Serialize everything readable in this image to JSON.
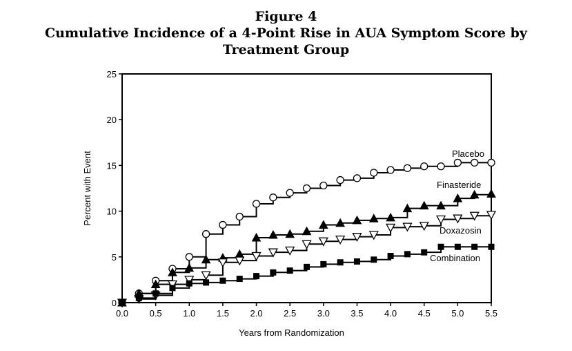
{
  "chart_data": {
    "type": "line",
    "step": true,
    "figure_label": "Figure 4",
    "title": "Cumulative Incidence of a 4-Point Rise in AUA Symptom Score by Treatment Group",
    "xlabel": "Years from Randomization",
    "ylabel": "Percent with Event",
    "xlim": [
      0,
      5.5
    ],
    "ylim": [
      0,
      25
    ],
    "xticks": [
      "0.0",
      "0.5",
      "1.0",
      "1.5",
      "2.0",
      "2.5",
      "3.0",
      "3.5",
      "4.0",
      "4.5",
      "5.0",
      "5.5"
    ],
    "yticks": [
      "0",
      "5",
      "10",
      "15",
      "20",
      "25"
    ],
    "grid": false,
    "legend": "none",
    "series": [
      {
        "name": "Placebo",
        "marker": "open-circle",
        "points": [
          [
            0,
            0
          ],
          [
            0.25,
            1.0
          ],
          [
            0.5,
            2.4
          ],
          [
            0.75,
            3.7
          ],
          [
            1.0,
            5.0
          ],
          [
            1.25,
            7.5
          ],
          [
            1.5,
            8.5
          ],
          [
            1.75,
            9.4
          ],
          [
            2.0,
            10.8
          ],
          [
            2.25,
            11.5
          ],
          [
            2.5,
            12.0
          ],
          [
            2.75,
            12.5
          ],
          [
            3.0,
            12.8
          ],
          [
            3.25,
            13.4
          ],
          [
            3.5,
            13.6
          ],
          [
            3.75,
            14.2
          ],
          [
            4.0,
            14.5
          ],
          [
            4.25,
            14.7
          ],
          [
            4.5,
            14.9
          ],
          [
            4.75,
            14.9
          ],
          [
            5.0,
            15.3
          ],
          [
            5.25,
            15.3
          ],
          [
            5.5,
            15.3
          ]
        ]
      },
      {
        "name": "Finasteride",
        "marker": "filled-triangle-up",
        "points": [
          [
            0,
            0
          ],
          [
            0.25,
            1.0
          ],
          [
            0.5,
            2.0
          ],
          [
            0.75,
            3.3
          ],
          [
            1.0,
            3.8
          ],
          [
            1.25,
            4.7
          ],
          [
            1.5,
            4.9
          ],
          [
            1.75,
            5.3
          ],
          [
            2.0,
            7.1
          ],
          [
            2.25,
            7.4
          ],
          [
            2.5,
            7.5
          ],
          [
            2.75,
            7.8
          ],
          [
            3.0,
            8.5
          ],
          [
            3.25,
            8.7
          ],
          [
            3.5,
            9.0
          ],
          [
            3.75,
            9.2
          ],
          [
            4.0,
            9.3
          ],
          [
            4.25,
            10.3
          ],
          [
            4.5,
            10.6
          ],
          [
            4.75,
            10.6
          ],
          [
            5.0,
            11.4
          ],
          [
            5.25,
            11.8
          ],
          [
            5.5,
            11.9
          ]
        ]
      },
      {
        "name": "Doxazosin",
        "marker": "open-triangle-down",
        "points": [
          [
            0,
            0
          ],
          [
            0.25,
            0.4
          ],
          [
            0.5,
            0.8
          ],
          [
            0.75,
            2.0
          ],
          [
            1.0,
            2.5
          ],
          [
            1.25,
            3.0
          ],
          [
            1.5,
            4.4
          ],
          [
            1.75,
            4.6
          ],
          [
            2.0,
            5.1
          ],
          [
            2.25,
            5.5
          ],
          [
            2.5,
            5.7
          ],
          [
            2.75,
            6.4
          ],
          [
            3.0,
            6.7
          ],
          [
            3.25,
            6.9
          ],
          [
            3.5,
            7.2
          ],
          [
            3.75,
            7.4
          ],
          [
            4.0,
            8.2
          ],
          [
            4.25,
            8.3
          ],
          [
            4.5,
            8.4
          ],
          [
            4.75,
            9.1
          ],
          [
            5.0,
            9.2
          ],
          [
            5.25,
            9.5
          ],
          [
            5.5,
            9.6
          ]
        ]
      },
      {
        "name": "Combination",
        "marker": "filled-square",
        "points": [
          [
            0,
            0
          ],
          [
            0.25,
            0.5
          ],
          [
            0.5,
            1.0
          ],
          [
            0.75,
            1.6
          ],
          [
            1.0,
            2.1
          ],
          [
            1.25,
            2.2
          ],
          [
            1.5,
            2.4
          ],
          [
            1.75,
            2.6
          ],
          [
            2.0,
            2.9
          ],
          [
            2.25,
            3.3
          ],
          [
            2.5,
            3.5
          ],
          [
            2.75,
            3.9
          ],
          [
            3.0,
            4.2
          ],
          [
            3.25,
            4.4
          ],
          [
            3.5,
            4.5
          ],
          [
            3.75,
            4.7
          ],
          [
            4.0,
            5.1
          ],
          [
            4.25,
            5.3
          ],
          [
            4.5,
            5.5
          ],
          [
            4.75,
            6.1
          ],
          [
            5.0,
            6.1
          ],
          [
            5.25,
            6.1
          ],
          [
            5.5,
            6.1
          ]
        ]
      }
    ]
  }
}
